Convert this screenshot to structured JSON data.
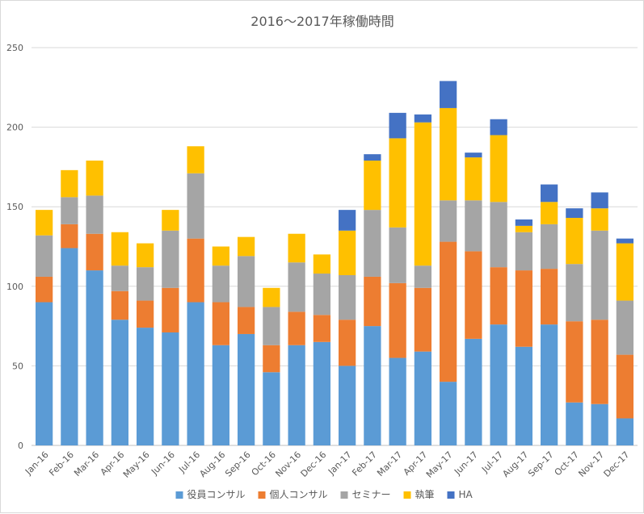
{
  "chart_data": {
    "type": "bar",
    "stacked": true,
    "title": "2016～2017年稼働時間",
    "xlabel": "",
    "ylabel": "",
    "ylim": [
      0,
      250
    ],
    "yticks": [
      0,
      50,
      100,
      150,
      200,
      250
    ],
    "grid": true,
    "legend_position": "bottom",
    "categories": [
      "Jan-16",
      "Feb-16",
      "Mar-16",
      "Apr-16",
      "May-16",
      "Jun-16",
      "Jul-16",
      "Aug-16",
      "Sep-16",
      "Oct-16",
      "Nov-16",
      "Dec-16",
      "Jan-17",
      "Feb-17",
      "Mar-17",
      "Apr-17",
      "May-17",
      "Jun-17",
      "Jul-17",
      "Aug-17",
      "Sep-17",
      "Oct-17",
      "Nov-17",
      "Dec-17"
    ],
    "series": [
      {
        "name": "役員コンサル",
        "color": "#5b9bd5",
        "values": [
          90,
          124,
          110,
          79,
          74,
          71,
          90,
          63,
          70,
          46,
          63,
          65,
          50,
          75,
          55,
          59,
          40,
          67,
          76,
          62,
          76,
          27,
          26,
          17
        ]
      },
      {
        "name": "個人コンサル",
        "color": "#ed7d31",
        "values": [
          16,
          15,
          23,
          18,
          17,
          28,
          40,
          27,
          17,
          17,
          21,
          17,
          29,
          31,
          47,
          40,
          88,
          55,
          36,
          48,
          35,
          51,
          53,
          40
        ]
      },
      {
        "name": "セミナー",
        "color": "#a5a5a5",
        "values": [
          26,
          17,
          24,
          16,
          21,
          36,
          41,
          23,
          32,
          24,
          31,
          26,
          28,
          42,
          35,
          14,
          26,
          32,
          41,
          24,
          28,
          36,
          56,
          34
        ]
      },
      {
        "name": "執筆",
        "color": "#ffc000",
        "values": [
          16,
          17,
          22,
          21,
          15,
          13,
          17,
          12,
          12,
          12,
          18,
          12,
          28,
          31,
          56,
          90,
          58,
          27,
          42,
          4,
          14,
          29,
          14,
          36
        ]
      },
      {
        "name": "HA",
        "color": "#4472c4",
        "values": [
          0,
          0,
          0,
          0,
          0,
          0,
          0,
          0,
          0,
          0,
          0,
          0,
          13,
          4,
          16,
          5,
          17,
          3,
          10,
          4,
          11,
          6,
          10,
          3
        ]
      }
    ]
  }
}
